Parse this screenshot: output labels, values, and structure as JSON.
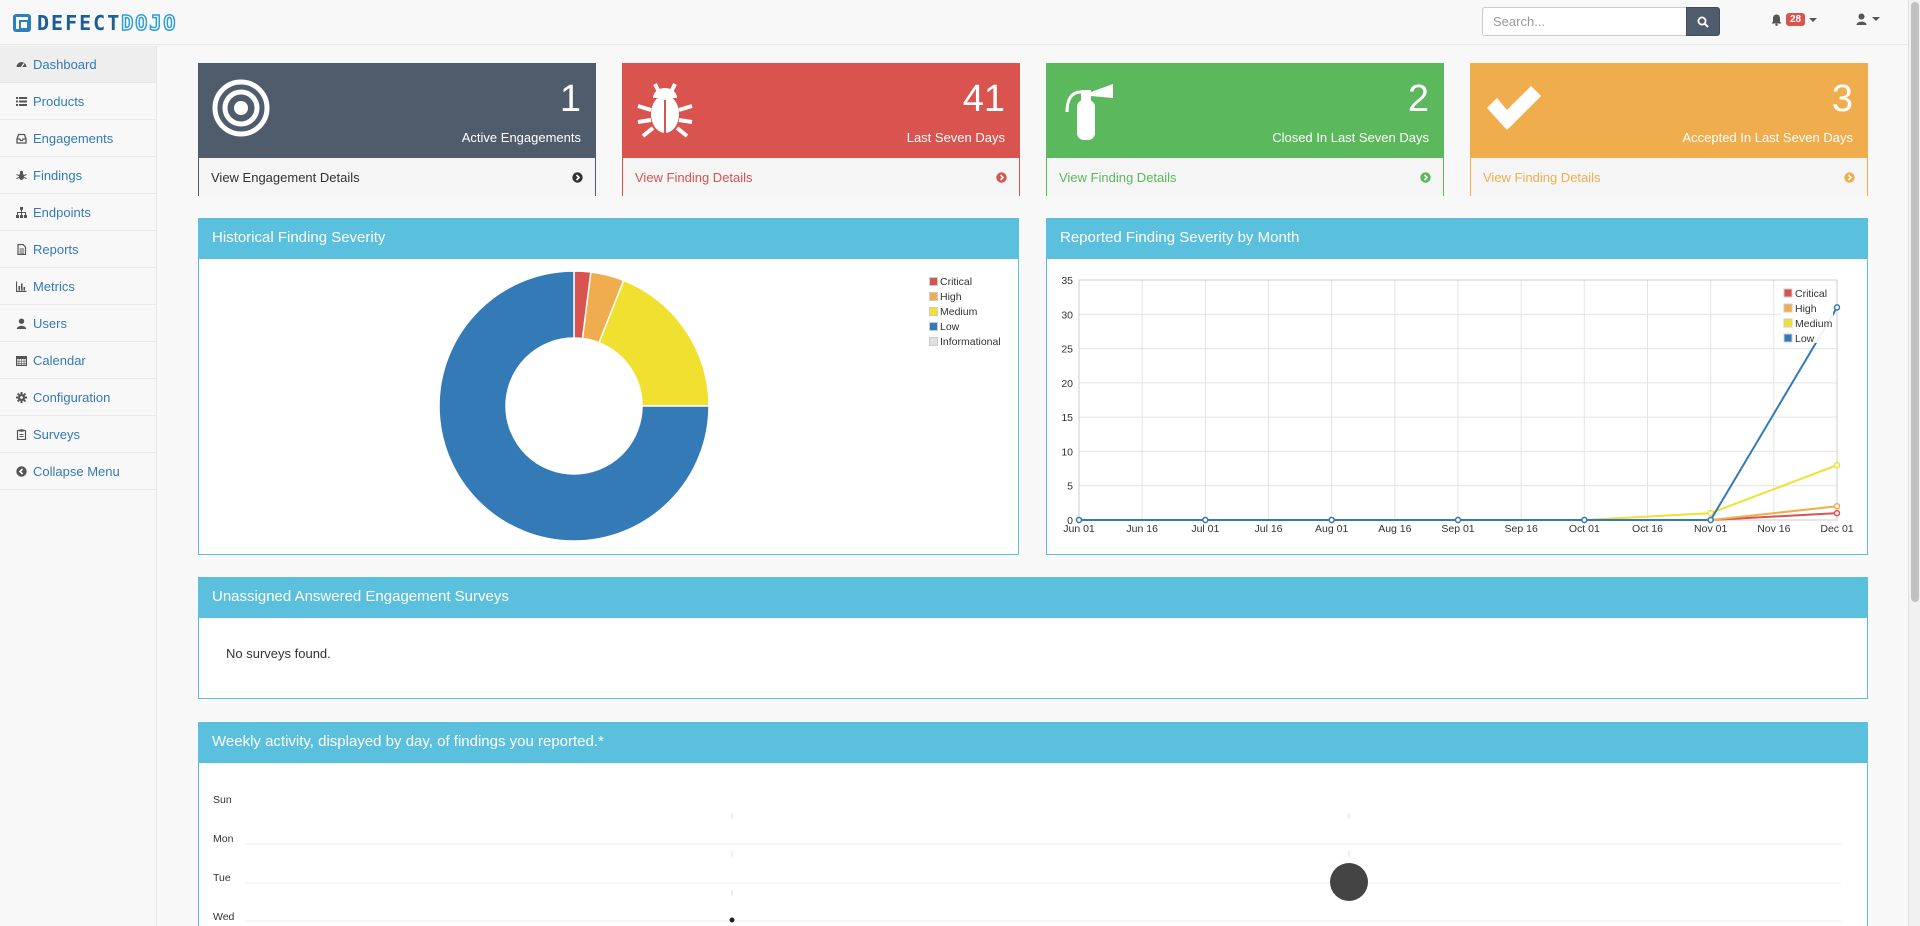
{
  "brand": {
    "part1": "DEFECT",
    "part2": "DOJO"
  },
  "search": {
    "placeholder": "Search..."
  },
  "notifications": {
    "count": "28"
  },
  "sidebar": {
    "items": [
      {
        "label": "Dashboard",
        "icon": "dashboard-icon"
      },
      {
        "label": "Products",
        "icon": "list-icon"
      },
      {
        "label": "Engagements",
        "icon": "inbox-icon"
      },
      {
        "label": "Findings",
        "icon": "bug-icon"
      },
      {
        "label": "Endpoints",
        "icon": "sitemap-icon"
      },
      {
        "label": "Reports",
        "icon": "file-icon"
      },
      {
        "label": "Metrics",
        "icon": "bar-chart-icon"
      },
      {
        "label": "Users",
        "icon": "user-icon"
      },
      {
        "label": "Calendar",
        "icon": "calendar-icon"
      },
      {
        "label": "Configuration",
        "icon": "gear-icon"
      },
      {
        "label": "Surveys",
        "icon": "clipboard-icon"
      },
      {
        "label": "Collapse Menu",
        "icon": "arrow-circle-left-icon"
      }
    ]
  },
  "stats": [
    {
      "number": "1",
      "label": "Active Engagements",
      "link": "View Engagement Details",
      "color": "#4f5c6b",
      "link_color": "#333333"
    },
    {
      "number": "41",
      "label": "Last Seven Days",
      "link": "View Finding Details",
      "color": "#d9534f",
      "link_color": "#d9534f"
    },
    {
      "number": "2",
      "label": "Closed In Last Seven Days",
      "link": "View Finding Details",
      "color": "#5cb85c",
      "link_color": "#5cb85c"
    },
    {
      "number": "3",
      "label": "Accepted In Last Seven Days",
      "link": "View Finding Details",
      "color": "#f0ad4e",
      "link_color": "#f0ad4e"
    }
  ],
  "panels": {
    "historical": "Historical Finding Severity",
    "monthly": "Reported Finding Severity by Month",
    "surveys": "Unassigned Answered Engagement Surveys",
    "surveys_empty": "No surveys found.",
    "weekly": "Weekly activity, displayed by day, of findings you reported.*"
  },
  "chart_data": [
    {
      "type": "pie",
      "title": "Historical Finding Severity",
      "categories": [
        "Critical",
        "High",
        "Medium",
        "Low",
        "Informational"
      ],
      "values": [
        2,
        4,
        19,
        75,
        0
      ],
      "colors": [
        "#d9534f",
        "#f0ad4e",
        "#f0e130",
        "#337ab7",
        "#e0e0e0"
      ],
      "legend_position": "top-right"
    },
    {
      "type": "line",
      "title": "Reported Finding Severity by Month",
      "x": [
        "Jun 01",
        "Jul 01",
        "Aug 01",
        "Sep 01",
        "Oct 01",
        "Nov 01",
        "Dec 01"
      ],
      "x_ticks": [
        "Jun 01",
        "Jun 16",
        "Jul 01",
        "Jul 16",
        "Aug 01",
        "Aug 16",
        "Sep 01",
        "Sep 16",
        "Oct 01",
        "Oct 16",
        "Nov 01",
        "Nov 16",
        "Dec 01"
      ],
      "series": [
        {
          "name": "Critical",
          "color": "#d9534f",
          "values": [
            0,
            0,
            0,
            0,
            0,
            0,
            1
          ]
        },
        {
          "name": "High",
          "color": "#f0ad4e",
          "values": [
            0,
            0,
            0,
            0,
            0,
            0,
            2
          ]
        },
        {
          "name": "Medium",
          "color": "#f0e130",
          "values": [
            0,
            0,
            0,
            0,
            0,
            1,
            8
          ]
        },
        {
          "name": "Low",
          "color": "#337ab7",
          "values": [
            0,
            0,
            0,
            0,
            0,
            0,
            31
          ]
        }
      ],
      "ylim": [
        0,
        35
      ],
      "y_ticks": [
        "0",
        "5",
        "10",
        "15",
        "20",
        "25",
        "30",
        "35"
      ],
      "grid": true,
      "legend_position": "top-right"
    }
  ],
  "weekly": {
    "days": [
      "Sun",
      "Mon",
      "Tue",
      "Wed"
    ]
  }
}
